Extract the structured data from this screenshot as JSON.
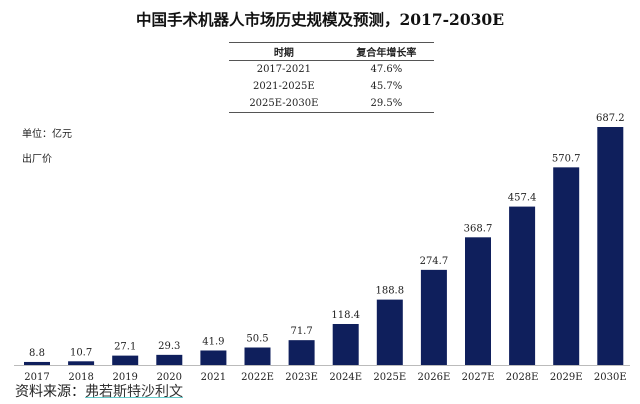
{
  "chart_data": {
    "type": "bar",
    "title": "中国手术机器人市场历史规模及预测，2017-2030E",
    "categories": [
      "2017",
      "2018",
      "2019",
      "2020",
      "2021",
      "2022E",
      "2023E",
      "2024E",
      "2025E",
      "2026E",
      "2027E",
      "2028E",
      "2029E",
      "2030E"
    ],
    "values": [
      8.8,
      10.7,
      27.1,
      29.3,
      41.9,
      50.5,
      71.7,
      118.4,
      188.8,
      274.7,
      368.7,
      457.4,
      570.7,
      687.2
    ],
    "value_labels": [
      "8.8",
      "10.7",
      "27.1",
      "29.3",
      "41.9",
      "50.5",
      "71.7",
      "118.4",
      "188.8",
      "274.7",
      "368.7",
      "457.4",
      "570.7",
      "687.2"
    ],
    "unit_label": "单位：亿元",
    "price_label": "出厂价",
    "ylim": [
      0,
      700
    ],
    "grid": false,
    "bar_color": "#0f1f5c",
    "cagr_table": {
      "headers": [
        "时期",
        "复合年增长率"
      ],
      "rows": [
        [
          "2017-2021",
          "47.6%"
        ],
        [
          "2021-2025E",
          "45.7%"
        ],
        [
          "2025E-2030E",
          "29.5%"
        ]
      ]
    }
  },
  "source": {
    "label": "资料来源：",
    "name": "弗若斯特沙利文"
  }
}
